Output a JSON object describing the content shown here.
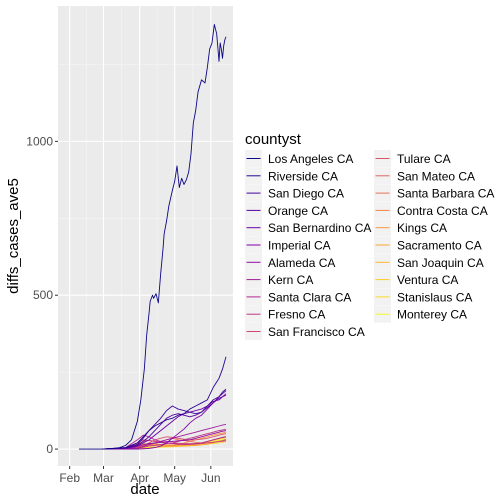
{
  "chart_data": {
    "type": "line",
    "xlabel": "date",
    "ylabel": "diffs_cases_ave5",
    "x_ticks": [
      "Feb",
      "Mar",
      "Apr",
      "May",
      "Jun"
    ],
    "x_tick_days": [
      32,
      61,
      92,
      122,
      153
    ],
    "x_range_days": [
      22,
      172
    ],
    "y_ticks": [
      0,
      500,
      1000
    ],
    "ylim": [
      -55,
      1440
    ],
    "grid": true,
    "legend_title": "countyst",
    "legend_placement": "right",
    "x_unit": "day of 2020",
    "series": [
      {
        "name": "Los Angeles CA",
        "color": "#0d0887",
        "x": [
          40,
          60,
          70,
          75,
          80,
          85,
          90,
          93,
          96,
          98,
          100,
          101,
          103,
          104,
          106,
          108,
          110,
          112,
          113,
          115,
          117,
          120,
          122,
          124,
          126,
          128,
          130,
          132,
          134,
          136,
          138,
          140,
          142,
          145,
          148,
          150,
          152,
          154,
          156,
          158,
          160,
          161,
          162,
          163,
          164,
          165,
          166
        ],
        "y": [
          0,
          0,
          2,
          5,
          12,
          30,
          90,
          160,
          260,
          370,
          440,
          480,
          500,
          490,
          505,
          475,
          570,
          650,
          700,
          740,
          790,
          840,
          870,
          920,
          850,
          880,
          860,
          875,
          900,
          960,
          1060,
          1100,
          1160,
          1200,
          1190,
          1240,
          1300,
          1320,
          1380,
          1350,
          1260,
          1320,
          1300,
          1270,
          1310,
          1330,
          1340
        ]
      },
      {
        "name": "Riverside CA",
        "color": "#2a0593",
        "x": [
          60,
          80,
          90,
          95,
          100,
          105,
          110,
          115,
          120,
          125,
          130,
          135,
          140,
          145,
          150,
          155,
          160,
          163,
          166
        ],
        "y": [
          0,
          5,
          20,
          40,
          60,
          75,
          85,
          95,
          100,
          110,
          115,
          130,
          140,
          150,
          160,
          200,
          230,
          260,
          300
        ]
      },
      {
        "name": "San Diego CA",
        "color": "#41049d",
        "x": [
          60,
          80,
          90,
          95,
          100,
          105,
          110,
          115,
          120,
          125,
          130,
          135,
          140,
          145,
          150,
          155,
          160,
          163,
          166
        ],
        "y": [
          0,
          4,
          15,
          35,
          60,
          80,
          100,
          125,
          140,
          130,
          125,
          120,
          115,
          120,
          140,
          160,
          170,
          185,
          195
        ]
      },
      {
        "name": "Orange CA",
        "color": "#5601a4",
        "x": [
          60,
          80,
          90,
          95,
          100,
          105,
          110,
          115,
          120,
          125,
          130,
          135,
          140,
          145,
          150,
          155,
          160,
          163,
          166
        ],
        "y": [
          0,
          3,
          12,
          25,
          40,
          60,
          80,
          100,
          110,
          115,
          110,
          105,
          110,
          120,
          135,
          150,
          170,
          180,
          190
        ]
      },
      {
        "name": "San Bernardino CA",
        "color": "#6a00a8",
        "x": [
          60,
          80,
          90,
          95,
          100,
          105,
          110,
          115,
          120,
          125,
          130,
          135,
          140,
          145,
          150,
          155,
          160,
          163,
          166
        ],
        "y": [
          0,
          3,
          10,
          20,
          30,
          45,
          60,
          75,
          90,
          105,
          115,
          120,
          125,
          130,
          140,
          155,
          160,
          170,
          175
        ]
      },
      {
        "name": "Imperial CA",
        "color": "#7e03a8",
        "x": [
          60,
          80,
          90,
          95,
          100,
          105,
          110,
          115,
          120,
          125,
          130,
          135,
          140,
          145,
          150,
          155,
          160,
          163,
          166
        ],
        "y": [
          0,
          0,
          0,
          1,
          2,
          5,
          10,
          20,
          35,
          50,
          65,
          85,
          100,
          110,
          130,
          150,
          165,
          170,
          180
        ]
      },
      {
        "name": "Alameda CA",
        "color": "#8f0da4",
        "x": [
          60,
          80,
          90,
          95,
          100,
          105,
          110,
          115,
          120,
          125,
          130,
          135,
          140,
          145,
          150,
          155,
          160,
          163,
          166
        ],
        "y": [
          0,
          2,
          8,
          14,
          18,
          20,
          22,
          24,
          25,
          27,
          28,
          30,
          35,
          40,
          45,
          50,
          55,
          58,
          60
        ]
      },
      {
        "name": "Kern CA",
        "color": "#a11b9b",
        "x": [
          60,
          80,
          90,
          95,
          100,
          105,
          110,
          115,
          120,
          125,
          130,
          135,
          140,
          145,
          150,
          155,
          160,
          163,
          166
        ],
        "y": [
          0,
          1,
          3,
          8,
          15,
          20,
          25,
          30,
          35,
          40,
          45,
          50,
          55,
          60,
          65,
          70,
          75,
          78,
          80
        ]
      },
      {
        "name": "Santa Clara CA",
        "color": "#b12a90",
        "x": [
          60,
          80,
          90,
          95,
          100,
          105,
          110,
          115,
          120,
          125,
          130,
          135,
          140,
          145,
          150,
          155,
          160,
          163,
          166
        ],
        "y": [
          0,
          5,
          30,
          45,
          40,
          30,
          25,
          20,
          18,
          16,
          15,
          16,
          18,
          20,
          25,
          30,
          35,
          38,
          40
        ]
      },
      {
        "name": "Fresno CA",
        "color": "#bf3984",
        "x": [
          60,
          80,
          90,
          95,
          100,
          105,
          110,
          115,
          120,
          125,
          130,
          135,
          140,
          145,
          150,
          155,
          160,
          163,
          166
        ],
        "y": [
          0,
          1,
          3,
          6,
          10,
          12,
          15,
          18,
          20,
          25,
          30,
          35,
          40,
          45,
          50,
          55,
          60,
          62,
          65
        ]
      },
      {
        "name": "San Francisco CA",
        "color": "#cc4778",
        "x": [
          60,
          80,
          90,
          95,
          100,
          105,
          110,
          115,
          120,
          125,
          130,
          135,
          140,
          145,
          150,
          155,
          160,
          163,
          166
        ],
        "y": [
          0,
          4,
          20,
          30,
          28,
          25,
          22,
          20,
          20,
          19,
          18,
          18,
          17,
          18,
          20,
          22,
          25,
          27,
          30
        ]
      },
      {
        "name": "Tulare CA",
        "color": "#d6556d",
        "x": [
          60,
          80,
          90,
          95,
          100,
          105,
          110,
          115,
          120,
          125,
          130,
          135,
          140,
          145,
          150,
          155,
          160,
          163,
          166
        ],
        "y": [
          0,
          1,
          4,
          10,
          20,
          30,
          35,
          40,
          38,
          35,
          32,
          30,
          30,
          32,
          35,
          40,
          45,
          48,
          50
        ]
      },
      {
        "name": "San Mateo CA",
        "color": "#e16462",
        "x": [
          60,
          80,
          90,
          95,
          100,
          105,
          110,
          115,
          120,
          125,
          130,
          135,
          140,
          145,
          150,
          155,
          160,
          163,
          166
        ],
        "y": [
          0,
          3,
          15,
          25,
          28,
          25,
          22,
          20,
          18,
          17,
          16,
          15,
          16,
          18,
          20,
          22,
          24,
          25,
          26
        ]
      },
      {
        "name": "Santa Barbara CA",
        "color": "#e97257",
        "x": [
          60,
          80,
          90,
          95,
          100,
          105,
          110,
          115,
          120,
          125,
          130,
          135,
          140,
          145,
          150,
          155,
          160,
          163,
          166
        ],
        "y": [
          0,
          1,
          5,
          10,
          14,
          18,
          25,
          30,
          35,
          30,
          28,
          25,
          22,
          20,
          20,
          22,
          25,
          27,
          30
        ]
      },
      {
        "name": "Contra Costa CA",
        "color": "#f2844b",
        "x": [
          60,
          80,
          90,
          95,
          100,
          105,
          110,
          115,
          120,
          125,
          130,
          135,
          140,
          145,
          150,
          155,
          160,
          163,
          166
        ],
        "y": [
          0,
          2,
          10,
          15,
          18,
          17,
          15,
          14,
          13,
          14,
          15,
          16,
          18,
          20,
          25,
          30,
          35,
          38,
          40
        ]
      },
      {
        "name": "Kings CA",
        "color": "#f89540",
        "x": [
          60,
          80,
          90,
          95,
          100,
          105,
          110,
          115,
          120,
          125,
          130,
          135,
          140,
          145,
          150,
          155,
          160,
          163,
          166
        ],
        "y": [
          0,
          0,
          1,
          2,
          3,
          5,
          8,
          10,
          12,
          15,
          20,
          25,
          30,
          35,
          40,
          45,
          50,
          52,
          55
        ]
      },
      {
        "name": "Sacramento CA",
        "color": "#fca636",
        "x": [
          60,
          80,
          90,
          95,
          100,
          105,
          110,
          115,
          120,
          125,
          130,
          135,
          140,
          145,
          150,
          155,
          160,
          163,
          166
        ],
        "y": [
          0,
          3,
          12,
          18,
          16,
          13,
          10,
          9,
          9,
          10,
          10,
          11,
          12,
          14,
          16,
          20,
          25,
          28,
          32
        ]
      },
      {
        "name": "San Joaquin CA",
        "color": "#feb72d",
        "x": [
          60,
          80,
          90,
          95,
          100,
          105,
          110,
          115,
          120,
          125,
          130,
          135,
          140,
          145,
          150,
          155,
          160,
          163,
          166
        ],
        "y": [
          0,
          1,
          5,
          10,
          12,
          13,
          12,
          11,
          10,
          11,
          12,
          13,
          15,
          18,
          22,
          28,
          35,
          38,
          42
        ]
      },
      {
        "name": "Ventura CA",
        "color": "#fdc926",
        "x": [
          60,
          80,
          90,
          95,
          100,
          105,
          110,
          115,
          120,
          125,
          130,
          135,
          140,
          145,
          150,
          155,
          160,
          163,
          166
        ],
        "y": [
          0,
          2,
          8,
          12,
          15,
          14,
          13,
          12,
          12,
          13,
          14,
          16,
          18,
          20,
          24,
          28,
          32,
          35,
          38
        ]
      },
      {
        "name": "Stanislaus CA",
        "color": "#f9dc24",
        "x": [
          60,
          80,
          90,
          95,
          100,
          105,
          110,
          115,
          120,
          125,
          130,
          135,
          140,
          145,
          150,
          155,
          160,
          163,
          166
        ],
        "y": [
          0,
          1,
          3,
          5,
          6,
          7,
          7,
          8,
          8,
          9,
          10,
          11,
          12,
          14,
          16,
          18,
          20,
          22,
          25
        ]
      },
      {
        "name": "Monterey CA",
        "color": "#f0f921",
        "x": [
          60,
          80,
          90,
          95,
          100,
          105,
          110,
          115,
          120,
          125,
          130,
          135,
          140,
          145,
          150,
          155,
          160,
          163,
          166
        ],
        "y": [
          0,
          0,
          2,
          4,
          5,
          6,
          6,
          7,
          8,
          9,
          10,
          12,
          14,
          16,
          20,
          24,
          28,
          30,
          32
        ]
      }
    ]
  }
}
